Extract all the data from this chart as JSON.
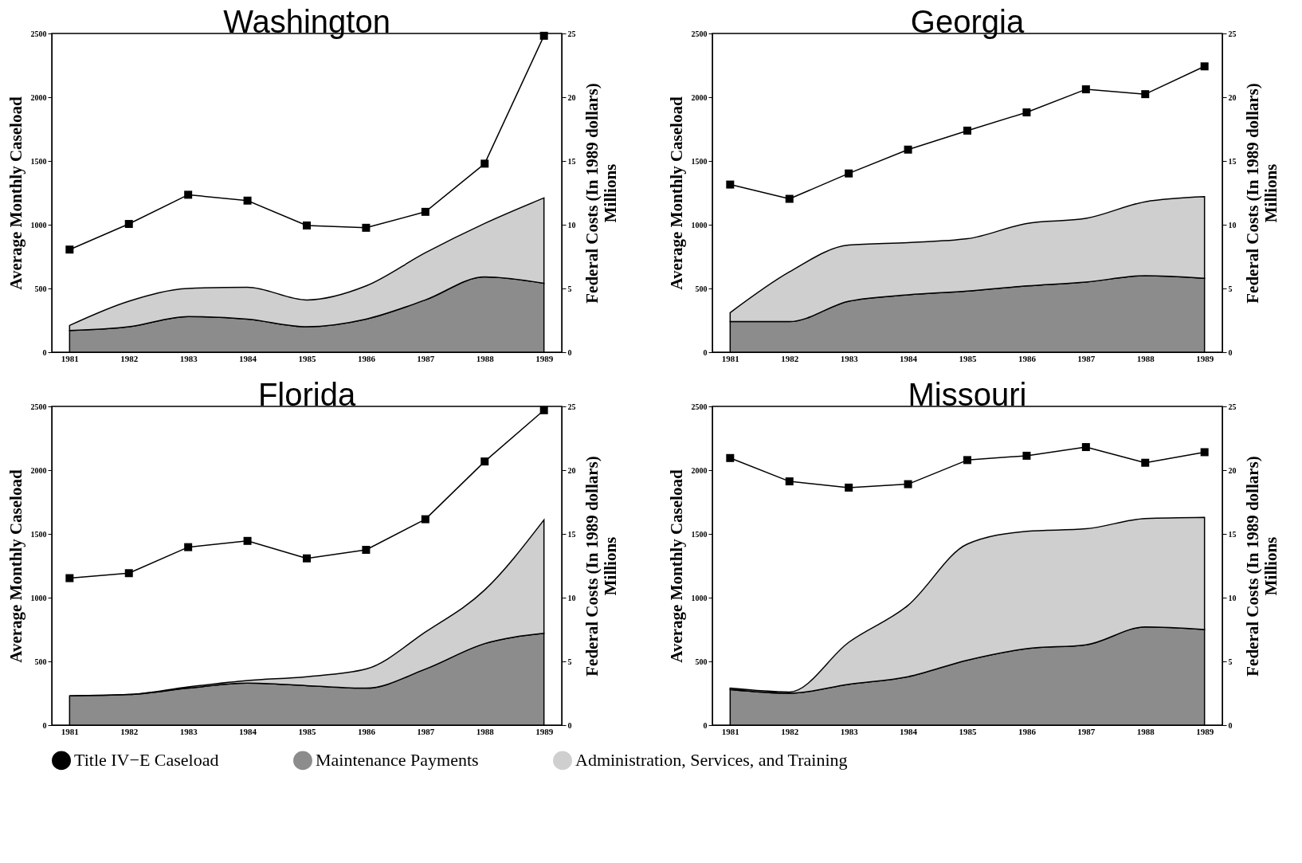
{
  "chart_data": [
    {
      "type": "line",
      "title": "Washington",
      "categories": [
        "1981",
        "1982",
        "1983",
        "1984",
        "1985",
        "1986",
        "1987",
        "1988",
        "1989"
      ],
      "ylabel": "Average Monthly Caseload",
      "y2label": "Federal Costs (In 1989 dollars)",
      "annotations": [
        "Millions"
      ],
      "ylim": [
        0,
        2500
      ],
      "yticks": [
        0,
        500,
        1000,
        1500,
        2000,
        2500
      ],
      "y2lim": [
        0,
        25
      ],
      "y2ticks": [
        0,
        5,
        10,
        15,
        20,
        25
      ],
      "stacked": true,
      "legend": "bottom",
      "series": [
        {
          "name": "Title IV−E Caseload",
          "marker": "square",
          "color": "#000000",
          "values": [
            805,
            1006,
            1235,
            1189,
            994,
            976,
            1101,
            1479,
            2482
          ]
        },
        {
          "name": "Maintenance Payments",
          "type": "area",
          "axis": "y2",
          "color": "#8c8c8c",
          "values": [
            1.7,
            2.0,
            2.8,
            2.6,
            2.0,
            2.6,
            4.1,
            5.9,
            5.4
          ]
        },
        {
          "name": "Administration, Services, and Training",
          "type": "area",
          "axis": "y2",
          "color": "#cfcfcf",
          "values": [
            0.4,
            2.0,
            2.2,
            2.5,
            2.1,
            2.6,
            3.7,
            4.2,
            6.7
          ]
        }
      ]
    },
    {
      "type": "line",
      "title": "Georgia",
      "categories": [
        "1981",
        "1982",
        "1983",
        "1984",
        "1985",
        "1986",
        "1987",
        "1988",
        "1989"
      ],
      "ylabel": "Average Monthly Caseload",
      "y2label": "Federal Costs (In 1989 dollars)",
      "annotations": [
        "Millions"
      ],
      "ylim": [
        0,
        2500
      ],
      "yticks": [
        0,
        500,
        1000,
        1500,
        2000,
        2500
      ],
      "y2lim": [
        0,
        25
      ],
      "y2ticks": [
        0,
        5,
        10,
        15,
        20,
        25
      ],
      "stacked": true,
      "legend": "bottom",
      "series": [
        {
          "name": "Title IV−E Caseload",
          "marker": "square",
          "color": "#000000",
          "values": [
            1315,
            1203,
            1402,
            1589,
            1738,
            1881,
            2062,
            2024,
            2242
          ]
        },
        {
          "name": "Maintenance Payments",
          "type": "area",
          "axis": "y2",
          "color": "#8c8c8c",
          "values": [
            2.4,
            2.4,
            4.0,
            4.5,
            4.8,
            5.2,
            5.5,
            6.0,
            5.8
          ]
        },
        {
          "name": "Administration, Services, and Training",
          "type": "area",
          "axis": "y2",
          "color": "#cfcfcf",
          "values": [
            0.7,
            3.9,
            4.4,
            4.1,
            4.1,
            4.9,
            5.0,
            5.8,
            6.4
          ]
        }
      ]
    },
    {
      "type": "line",
      "title": "Florida",
      "categories": [
        "1981",
        "1982",
        "1983",
        "1984",
        "1985",
        "1986",
        "1987",
        "1988",
        "1989"
      ],
      "ylabel": "Average Monthly Caseload",
      "y2label": "Federal Costs (In 1989 dollars)",
      "annotations": [
        "Millions"
      ],
      "ylim": [
        0,
        2500
      ],
      "yticks": [
        0,
        500,
        1000,
        1500,
        2000,
        2500
      ],
      "y2lim": [
        0,
        25
      ],
      "y2ticks": [
        0,
        5,
        10,
        15,
        20,
        25
      ],
      "stacked": true,
      "legend": "bottom",
      "series": [
        {
          "name": "Title IV−E Caseload",
          "marker": "square",
          "color": "#000000",
          "values": [
            1153,
            1192,
            1396,
            1445,
            1308,
            1375,
            1615,
            2068,
            2470
          ]
        },
        {
          "name": "Maintenance Payments",
          "type": "area",
          "axis": "y2",
          "color": "#8c8c8c",
          "values": [
            2.3,
            2.4,
            2.9,
            3.3,
            3.1,
            2.9,
            4.4,
            6.4,
            7.2
          ]
        },
        {
          "name": "Administration, Services, and Training",
          "type": "area",
          "axis": "y2",
          "color": "#cfcfcf",
          "values": [
            0,
            0,
            0.1,
            0.2,
            0.7,
            1.5,
            2.9,
            4.2,
            8.9
          ]
        }
      ]
    },
    {
      "type": "line",
      "title": "Missouri",
      "categories": [
        "1981",
        "1982",
        "1983",
        "1984",
        "1985",
        "1986",
        "1987",
        "1988",
        "1989"
      ],
      "ylabel": "Average Monthly Caseload",
      "y2label": "Federal Costs (In 1989 dollars)",
      "annotations": [
        "Millions"
      ],
      "ylim": [
        0,
        2500
      ],
      "yticks": [
        0,
        500,
        1000,
        1500,
        2000,
        2500
      ],
      "y2lim": [
        0,
        25
      ],
      "y2ticks": [
        0,
        5,
        10,
        15,
        20,
        25
      ],
      "stacked": true,
      "legend": "bottom",
      "series": [
        {
          "name": "Title IV−E Caseload",
          "marker": "square",
          "color": "#000000",
          "values": [
            2095,
            1912,
            1863,
            1890,
            2079,
            2113,
            2181,
            2058,
            2141
          ]
        },
        {
          "name": "Maintenance Payments",
          "type": "area",
          "axis": "y2",
          "color": "#8c8c8c",
          "values": [
            2.8,
            2.5,
            3.2,
            3.8,
            5.1,
            6.0,
            6.3,
            7.7,
            7.5
          ]
        },
        {
          "name": "Administration, Services, and Training",
          "type": "area",
          "axis": "y2",
          "color": "#cfcfcf",
          "values": [
            0.1,
            0.1,
            3.3,
            5.6,
            9.1,
            9.2,
            9.1,
            8.5,
            8.8
          ]
        }
      ]
    }
  ]
}
